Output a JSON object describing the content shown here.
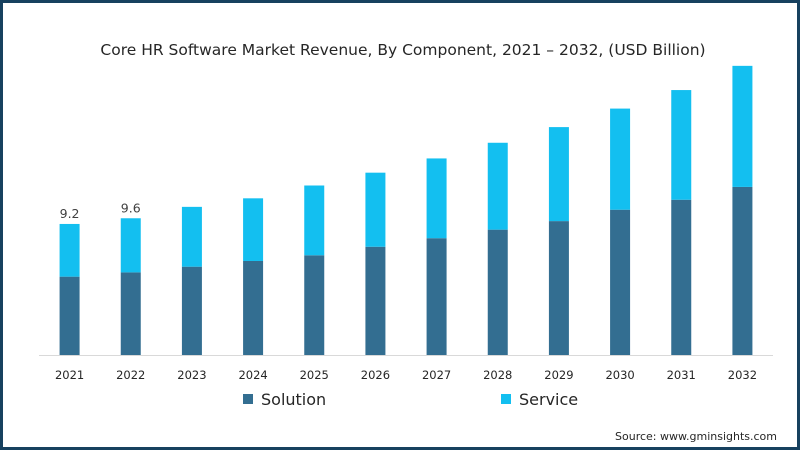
{
  "chart_data": {
    "type": "bar",
    "stacked": true,
    "title": "Core HR Software Market Revenue, By Component, 2021 – 2032, (USD Billion)",
    "categories": [
      "2021",
      "2022",
      "2023",
      "2024",
      "2025",
      "2026",
      "2027",
      "2028",
      "2029",
      "2030",
      "2031",
      "2032"
    ],
    "series": [
      {
        "name": "Solution",
        "color": "#336e91",
        "values": [
          5.5,
          5.8,
          6.2,
          6.6,
          7.0,
          7.6,
          8.2,
          8.8,
          9.4,
          10.2,
          10.9,
          11.8
        ]
      },
      {
        "name": "Service",
        "color": "#13bff0",
        "values": [
          3.7,
          3.8,
          4.2,
          4.4,
          4.9,
          5.2,
          5.6,
          6.1,
          6.6,
          7.1,
          7.7,
          8.5
        ]
      }
    ],
    "data_labels": [
      {
        "category": "2021",
        "text": "9.2"
      },
      {
        "category": "2022",
        "text": "9.6"
      }
    ],
    "ylim": [
      0,
      20.5
    ],
    "grid": false,
    "y_axis_visible": false,
    "legend_position": "bottom",
    "xlabel": "",
    "ylabel": ""
  },
  "source": "Source: www.gminsights.com"
}
